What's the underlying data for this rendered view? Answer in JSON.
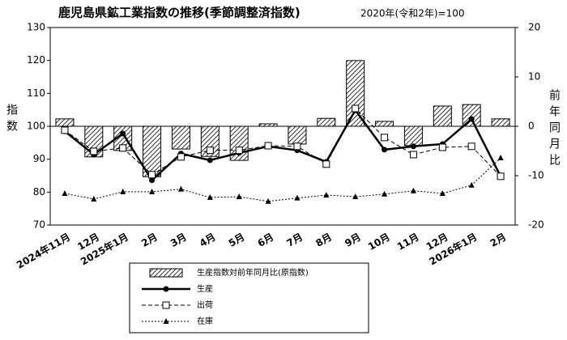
{
  "chart_data": {
    "type": "bar-line",
    "title": "鹿児島県鉱工業指数の推移(季節調整済指数)",
    "subtitle": "2020年(令和2年)=100",
    "ylabel": "指数",
    "y2label": "前年同月比",
    "categories": [
      "2024年11月",
      "12月",
      "2025年1月",
      "2月",
      "3月",
      "4月",
      "5月",
      "6月",
      "7月",
      "8月",
      "9月",
      "10月",
      "11月",
      "12月",
      "2026年1月",
      "2月"
    ],
    "ylim": [
      70,
      130
    ],
    "yticks": [
      70,
      80,
      90,
      100,
      110,
      120,
      130
    ],
    "y2lim": [
      -20,
      20
    ],
    "y2ticks": [
      -20,
      -10,
      0,
      10,
      20
    ],
    "series": [
      {
        "name": "生産指数対前年同月比(原指数)",
        "type": "bar",
        "axis": "y2",
        "color": "#000000",
        "values": [
          1.5,
          -6.2,
          -4.9,
          -10.2,
          -4.6,
          -6.1,
          -6.9,
          0.5,
          -3.6,
          1.6,
          13.3,
          1.0,
          -3.9,
          4.1,
          4.4,
          1.5
        ]
      },
      {
        "name": "生産",
        "type": "line",
        "color": "#000000",
        "marker": "circle",
        "line_style": "solid",
        "values": [
          98.5,
          91.4,
          97.8,
          83.6,
          91.7,
          89.7,
          91.9,
          93.9,
          92.7,
          89.2,
          104.9,
          92.9,
          93.9,
          94.6,
          102.2,
          84.8
        ]
      },
      {
        "name": "出荷",
        "type": "line",
        "color": "#000000",
        "marker": "square",
        "line_style": "dashed",
        "values": [
          98.8,
          92.4,
          93.4,
          85.3,
          90.7,
          92.7,
          92.7,
          94.1,
          93.9,
          88.5,
          105.4,
          96.6,
          91.4,
          93.6,
          93.9,
          84.8
        ]
      },
      {
        "name": "在庫",
        "type": "line",
        "color": "#000000",
        "marker": "triangle",
        "line_style": "dotted",
        "values": [
          79.6,
          77.9,
          80.1,
          80.1,
          80.9,
          78.4,
          78.6,
          77.2,
          78.2,
          79.1,
          78.6,
          79.4,
          80.4,
          79.6,
          82.1,
          90.4
        ]
      }
    ]
  }
}
